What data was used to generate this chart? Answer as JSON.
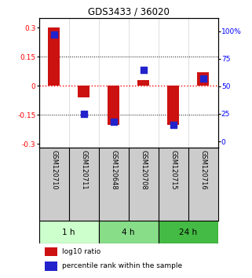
{
  "title": "GDS3433 / 36020",
  "samples": [
    "GSM120710",
    "GSM120711",
    "GSM120648",
    "GSM120708",
    "GSM120715",
    "GSM120716"
  ],
  "log10_ratio": [
    0.3,
    -0.06,
    -0.2,
    0.03,
    -0.2,
    0.07
  ],
  "percentile_rank": [
    97,
    25,
    18,
    65,
    15,
    57
  ],
  "time_groups": [
    {
      "label": "1 h",
      "start": 0,
      "end": 2,
      "color": "#ccffcc"
    },
    {
      "label": "4 h",
      "start": 2,
      "end": 4,
      "color": "#88dd88"
    },
    {
      "label": "24 h",
      "start": 4,
      "end": 6,
      "color": "#44bb44"
    }
  ],
  "ylim_left": [
    -0.32,
    0.35
  ],
  "ylim_right": [
    -6,
    112
  ],
  "yticks_left": [
    -0.3,
    -0.15,
    0,
    0.15,
    0.3
  ],
  "yticks_right": [
    0,
    25,
    50,
    75,
    100
  ],
  "ytick_right_labels": [
    "0",
    "25",
    "50",
    "75",
    "100%"
  ],
  "bar_color": "#cc1111",
  "dot_color": "#2222cc",
  "bar_width": 0.4,
  "dot_size": 35,
  "background_color": "#ffffff",
  "label_log10": "log10 ratio",
  "label_percentile": "percentile rank within the sample",
  "sample_box_color": "#cccccc"
}
